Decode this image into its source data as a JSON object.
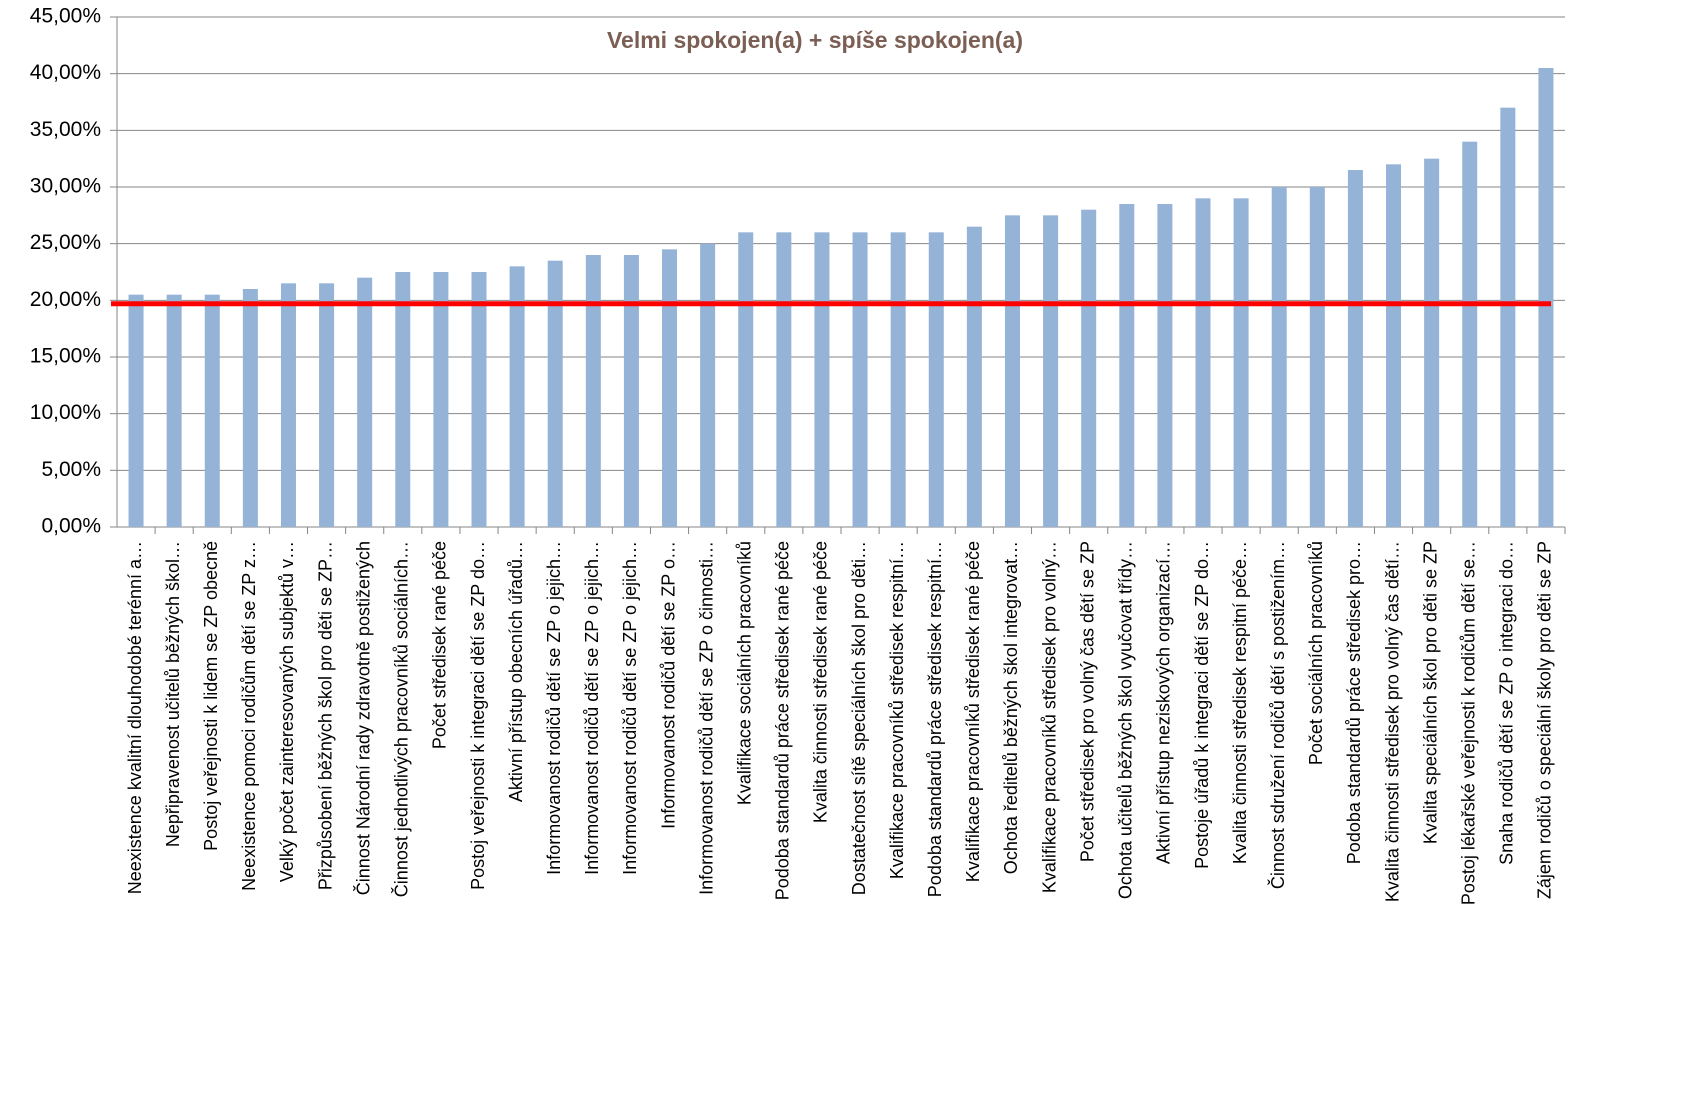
{
  "chart_data": {
    "type": "bar",
    "title": "Velmi spokojen(a) + spíše spokojen(a)",
    "categories": [
      "Neexistence kvalitní dlouhodobé terénní a…",
      "Nepřipravenost učitelů běžných škol…",
      "Postoj veřejnosti k lidem se ZP obecně",
      "Neexistence pomoci rodičům dětí se ZP z…",
      "Velký počet zainteresovaných subjektů v…",
      "Přizpůsobení běžných škol pro děti se ZP…",
      "Činnost Národní rady zdravotně postižených",
      "Činnost jednotlivých pracovníků sociálních…",
      "Počet středisek rané péče",
      "Postoj veřejnosti k integraci dětí se ZP do…",
      "Aktivní přístup obecních úřadů…",
      "Informovanost rodičů dětí se ZP o jejich…",
      "Informovanost rodičů dětí se ZP o jejich…",
      "Informovanost rodičů dětí se ZP o jejich…",
      "Informovanost rodičů dětí se ZP o…",
      "Informovanost rodičů dětí se ZP o činnosti…",
      "Kvalifikace sociálních pracovníků",
      "Podoba standardů práce středisek rané péče",
      "Kvalita činnosti středisek rané péče",
      "Dostatečnost sítě speciálních škol pro děti…",
      "Kvalifikace pracovníků středisek respitní…",
      "Podoba standardů práce středisek respitní…",
      "Kvalifikace pracovníků středisek rané péče",
      "Ochota ředitelů běžných škol integrovat…",
      "Kvalifikace pracovníků středisek pro volný…",
      "Počet středisek pro volný čas dětí se ZP",
      "Ochota učitelů běžných škol vyučovat třídy…",
      "Aktivní přístup neziskových organizací…",
      "Postoje úřadů k integraci dětí se ZP do…",
      "Kvalita činnosti středisek respitní péče…",
      "Činnost sdružení rodičů dětí s postižením…",
      "Počet sociálních pracovníků",
      "Podoba standardů práce středisek pro…",
      "Kvalita činnosti středisek pro volný čas dětí…",
      "Kvalita speciálních škol pro děti se ZP",
      "Postoj lékařské veřejnosti k rodičům dětí se…",
      "Snaha rodičů dětí se ZP o integraci do…",
      "Zájem rodičů o speciální školy pro děti se ZP"
    ],
    "values": [
      20.5,
      20.5,
      20.5,
      21,
      21.5,
      21.5,
      22,
      22.5,
      22.5,
      22.5,
      23,
      23.5,
      24,
      24,
      24.5,
      25,
      26,
      26,
      26,
      26,
      26,
      26,
      26.5,
      27.5,
      27.5,
      28,
      28.5,
      28.5,
      29,
      29,
      30,
      30,
      31.5,
      32,
      32.5,
      34,
      37,
      40.5
    ],
    "color": "#95b3d7",
    "ylim": [
      0,
      45
    ],
    "yticks": [
      {
        "value": 0,
        "label": "0,00%"
      },
      {
        "value": 5,
        "label": "5,00%"
      },
      {
        "value": 10,
        "label": "10,00%"
      },
      {
        "value": 15,
        "label": "15,00%"
      },
      {
        "value": 20,
        "label": "20,00%"
      },
      {
        "value": 25,
        "label": "25,00%"
      },
      {
        "value": 30,
        "label": "30,00%"
      },
      {
        "value": 35,
        "label": "35,00%"
      },
      {
        "value": 40,
        "label": "40,00%"
      },
      {
        "value": 45,
        "label": "45,00%"
      }
    ],
    "grid": true,
    "reference_line": {
      "value": 19.7,
      "color": "#ff0000"
    }
  }
}
